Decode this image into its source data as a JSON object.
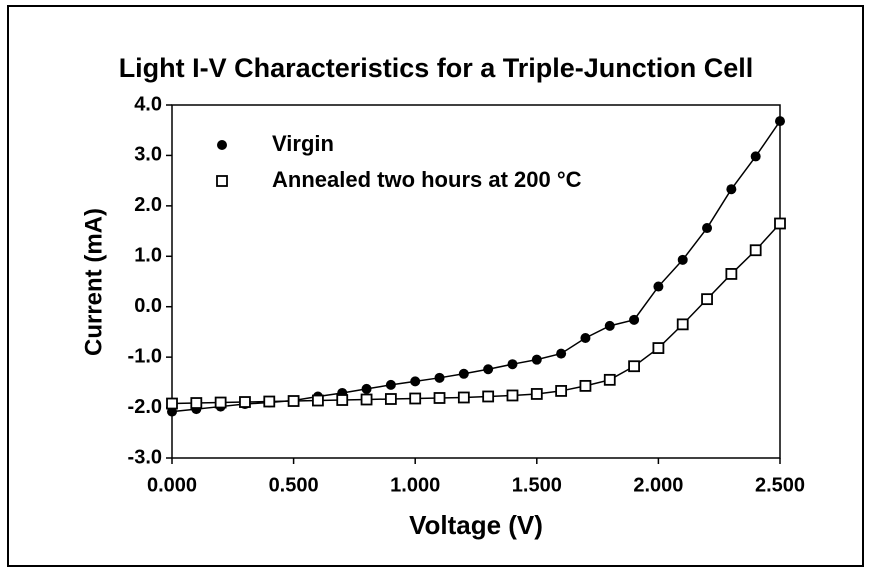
{
  "chart_data": {
    "type": "line",
    "title": "Light I-V Characteristics for a Triple-Junction Cell",
    "x_label": "Voltage (V)",
    "y_label": "Current (mA)",
    "x": [
      0,
      0.1,
      0.2,
      0.3,
      0.4,
      0.5,
      0.6,
      0.7,
      0.8,
      0.9,
      1.0,
      1.1,
      1.2,
      1.3,
      1.4,
      1.5,
      1.6,
      1.7,
      1.8,
      1.9,
      2.0,
      2.1,
      2.2,
      2.3,
      2.4,
      2.5
    ],
    "series": [
      {
        "name": "Virgin",
        "color": "#000000",
        "marker": "filled-circle",
        "values": [
          -2.08,
          -2.03,
          -1.98,
          -1.93,
          -1.9,
          -1.86,
          -1.78,
          -1.71,
          -1.63,
          -1.55,
          -1.48,
          -1.41,
          -1.33,
          -1.24,
          -1.14,
          -1.05,
          -0.93,
          -0.62,
          -0.38,
          -0.26,
          0.4,
          0.93,
          1.56,
          2.33,
          2.98,
          3.68
        ]
      },
      {
        "name": "Annealed two hours at 200 °C",
        "color": "#000000",
        "marker": "open-square",
        "values": [
          -1.92,
          -1.91,
          -1.9,
          -1.89,
          -1.88,
          -1.87,
          -1.86,
          -1.85,
          -1.84,
          -1.83,
          -1.82,
          -1.81,
          -1.8,
          -1.78,
          -1.76,
          -1.73,
          -1.67,
          -1.57,
          -1.45,
          -1.18,
          -0.82,
          -0.35,
          0.15,
          0.65,
          1.12,
          1.65
        ]
      }
    ],
    "xlim": [
      0,
      2.5
    ],
    "xticks": [
      {
        "value": 0,
        "label": "0.000"
      },
      {
        "value": 0.5,
        "label": "0.500"
      },
      {
        "value": 1,
        "label": "1.000"
      },
      {
        "value": 1.5,
        "label": "1.500"
      },
      {
        "value": 2,
        "label": "2.000"
      },
      {
        "value": 2.5,
        "label": "2.500"
      }
    ],
    "ylim": [
      -3,
      4
    ],
    "yticks": [
      {
        "value": -3,
        "label": "-3.0"
      },
      {
        "value": -2,
        "label": "-2.0"
      },
      {
        "value": -1,
        "label": "-1.0"
      },
      {
        "value": 0,
        "label": "0.0"
      },
      {
        "value": 1,
        "label": "1.0"
      },
      {
        "value": 2,
        "label": "2.0"
      },
      {
        "value": 3,
        "label": "3.0"
      },
      {
        "value": 4,
        "label": "4.0"
      }
    ],
    "grid": false
  }
}
